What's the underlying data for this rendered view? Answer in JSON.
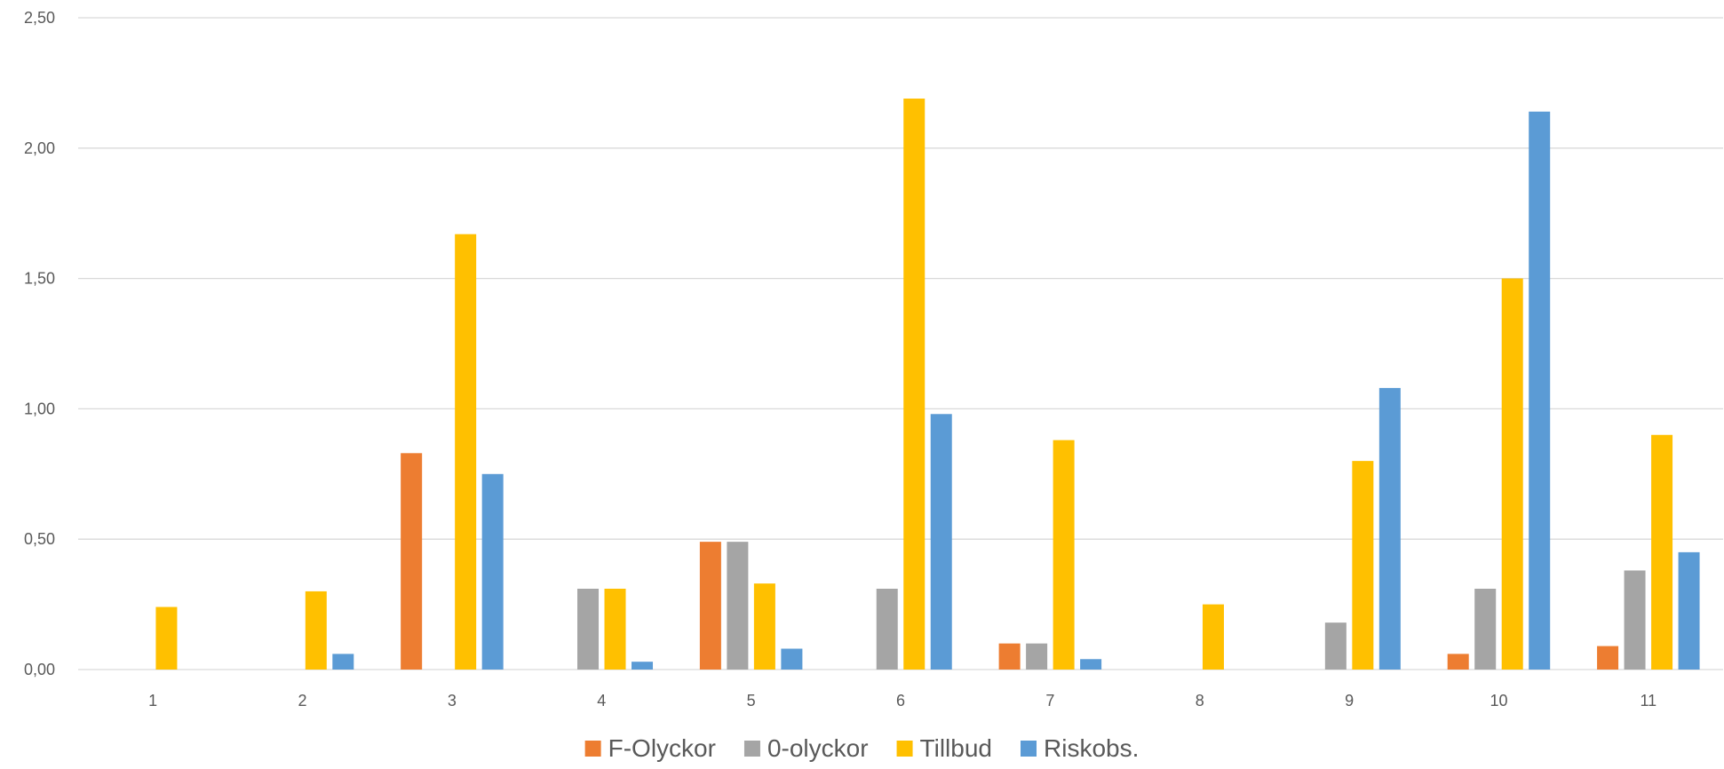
{
  "chart_data": {
    "type": "bar",
    "categories": [
      "1",
      "2",
      "3",
      "4",
      "5",
      "6",
      "7",
      "8",
      "9",
      "10",
      "11"
    ],
    "series": [
      {
        "name": "F-Olyckor",
        "color": "#ED7D31",
        "values": [
          0,
          0,
          0.83,
          0,
          0.49,
          0,
          0.1,
          0,
          0,
          0.06,
          0.09
        ]
      },
      {
        "name": "0-olyckor",
        "color": "#A5A5A5",
        "values": [
          0,
          0,
          0,
          0.31,
          0.49,
          0.31,
          0.1,
          0,
          0.18,
          0.31,
          0.38
        ]
      },
      {
        "name": "Tillbud",
        "color": "#FFC000",
        "values": [
          0.24,
          0.3,
          1.67,
          0.31,
          0.33,
          2.19,
          0.88,
          0.25,
          0.8,
          1.5,
          0.9
        ]
      },
      {
        "name": "Riskobs.",
        "color": "#5B9BD5",
        "values": [
          0,
          0.06,
          0.75,
          0.03,
          0.08,
          0.98,
          0.04,
          0,
          1.08,
          2.14,
          0.45
        ]
      }
    ],
    "yticks": [
      "0,00",
      "0,50",
      "1,00",
      "1,50",
      "2,00",
      "2,50"
    ],
    "ylim": [
      0,
      2.5
    ],
    "grid": true,
    "legend_position": "bottom",
    "title": "",
    "xlabel": "",
    "ylabel": ""
  }
}
